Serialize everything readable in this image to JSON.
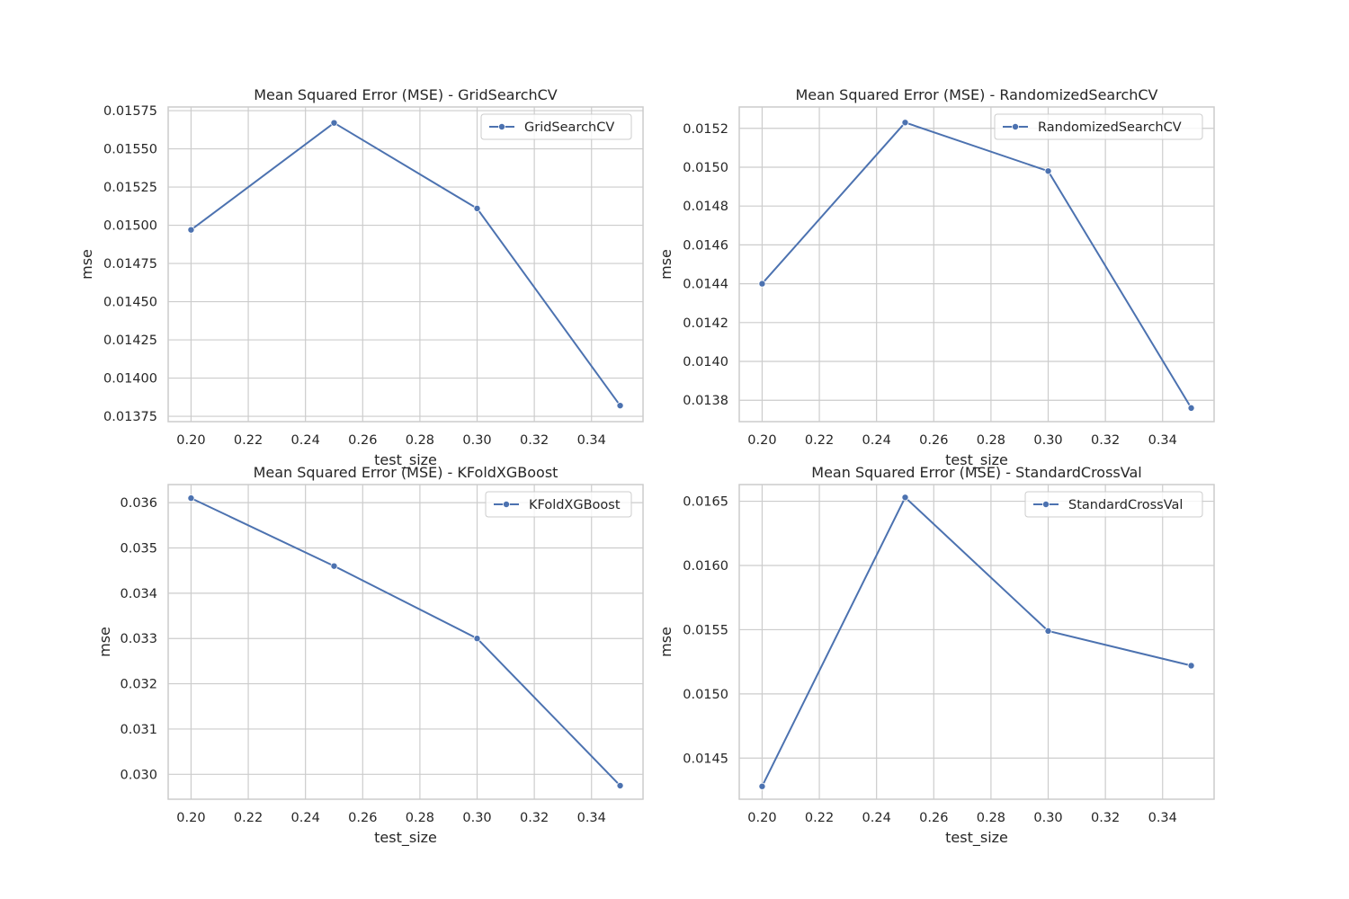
{
  "colors": {
    "line": "#4c72b0",
    "grid": "#cccccc",
    "frame": "#cccccc",
    "background": "#ffffff",
    "text": "#262626"
  },
  "chart_data": [
    {
      "type": "line",
      "title": "Mean Squared Error (MSE) - GridSearchCV",
      "xlabel": "test_size",
      "ylabel": "mse",
      "x": [
        0.2,
        0.25,
        0.3,
        0.35
      ],
      "series": [
        {
          "name": "GridSearchCV",
          "values": [
            0.01497,
            0.01567,
            0.01511,
            0.01382
          ]
        }
      ],
      "xlim": [
        0.192,
        0.358
      ],
      "ylim": [
        0.013715,
        0.015774
      ],
      "xticks": [
        0.2,
        0.22,
        0.24,
        0.26,
        0.28,
        0.3,
        0.32,
        0.34
      ],
      "xtick_labels": [
        "0.20",
        "0.22",
        "0.24",
        "0.26",
        "0.28",
        "0.30",
        "0.32",
        "0.34"
      ],
      "yticks": [
        0.01375,
        0.014,
        0.01425,
        0.0145,
        0.01475,
        0.015,
        0.01525,
        0.0155,
        0.01575
      ],
      "ytick_labels": [
        "0.01375",
        "0.01400",
        "0.01425",
        "0.01450",
        "0.01475",
        "0.01500",
        "0.01525",
        "0.01550",
        "0.01575"
      ],
      "grid": true,
      "legend": "top-right",
      "marker": "circle"
    },
    {
      "type": "line",
      "title": "Mean Squared Error (MSE) - RandomizedSearchCV",
      "xlabel": "test_size",
      "ylabel": "mse",
      "x": [
        0.2,
        0.25,
        0.3,
        0.35
      ],
      "series": [
        {
          "name": "RandomizedSearchCV",
          "values": [
            0.0144,
            0.01523,
            0.01498,
            0.01376
          ]
        }
      ],
      "xlim": [
        0.192,
        0.358
      ],
      "ylim": [
        0.01369,
        0.01531
      ],
      "xticks": [
        0.2,
        0.22,
        0.24,
        0.26,
        0.28,
        0.3,
        0.32,
        0.34
      ],
      "xtick_labels": [
        "0.20",
        "0.22",
        "0.24",
        "0.26",
        "0.28",
        "0.30",
        "0.32",
        "0.34"
      ],
      "yticks": [
        0.0138,
        0.014,
        0.0142,
        0.0144,
        0.0146,
        0.0148,
        0.015,
        0.0152
      ],
      "ytick_labels": [
        "0.0138",
        "0.0140",
        "0.0142",
        "0.0144",
        "0.0146",
        "0.0148",
        "0.0150",
        "0.0152"
      ],
      "grid": true,
      "legend": "top-right",
      "marker": "circle"
    },
    {
      "type": "line",
      "title": "Mean Squared Error (MSE) - KFoldXGBoost",
      "xlabel": "test_size",
      "ylabel": "mse",
      "x": [
        0.2,
        0.25,
        0.3,
        0.35
      ],
      "series": [
        {
          "name": "KFoldXGBoost",
          "values": [
            0.0361,
            0.0346,
            0.033,
            0.02975
          ]
        }
      ],
      "xlim": [
        0.192,
        0.358
      ],
      "ylim": [
        0.02945,
        0.0364
      ],
      "xticks": [
        0.2,
        0.22,
        0.24,
        0.26,
        0.28,
        0.3,
        0.32,
        0.34
      ],
      "xtick_labels": [
        "0.20",
        "0.22",
        "0.24",
        "0.26",
        "0.28",
        "0.30",
        "0.32",
        "0.34"
      ],
      "yticks": [
        0.03,
        0.031,
        0.032,
        0.033,
        0.034,
        0.035,
        0.036
      ],
      "ytick_labels": [
        "0.030",
        "0.031",
        "0.032",
        "0.033",
        "0.034",
        "0.035",
        "0.036"
      ],
      "grid": true,
      "legend": "top-right",
      "marker": "circle"
    },
    {
      "type": "line",
      "title": "Mean Squared Error (MSE) - StandardCrossVal",
      "xlabel": "test_size",
      "ylabel": "mse",
      "x": [
        0.2,
        0.25,
        0.3,
        0.35
      ],
      "series": [
        {
          "name": "StandardCrossVal",
          "values": [
            0.01428,
            0.01653,
            0.01549,
            0.01522
          ]
        }
      ],
      "xlim": [
        0.192,
        0.358
      ],
      "ylim": [
        0.01418,
        0.01663
      ],
      "xticks": [
        0.2,
        0.22,
        0.24,
        0.26,
        0.28,
        0.3,
        0.32,
        0.34
      ],
      "xtick_labels": [
        "0.20",
        "0.22",
        "0.24",
        "0.26",
        "0.28",
        "0.30",
        "0.32",
        "0.34"
      ],
      "yticks": [
        0.0145,
        0.015,
        0.0155,
        0.016,
        0.0165
      ],
      "ytick_labels": [
        "0.0145",
        "0.0150",
        "0.0155",
        "0.0160",
        "0.0165"
      ],
      "grid": true,
      "legend": "top-right",
      "marker": "circle"
    }
  ]
}
